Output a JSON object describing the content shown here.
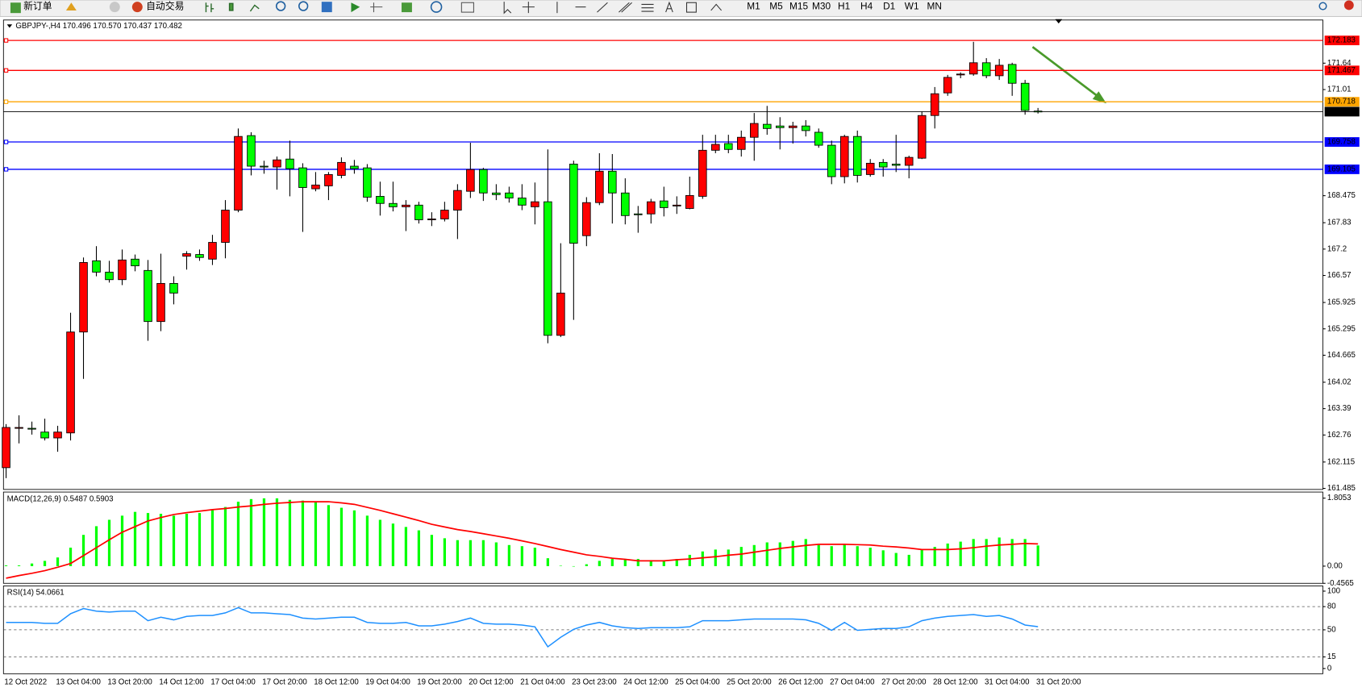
{
  "toolbar": {
    "new_order": "新订单",
    "auto_trading": "自动交易",
    "timeframes": [
      "M1",
      "M5",
      "M15",
      "M30",
      "H1",
      "H4",
      "D1",
      "W1",
      "MN"
    ]
  },
  "chart_data": [
    {
      "type": "candlestick",
      "title": "GBPJPY-,H4 170.496 170.570 170.437 170.482",
      "categories": [
        "12 Oct 2022",
        null,
        null,
        null,
        "13 Oct 04:00",
        null,
        null,
        null,
        "13 Oct 20:00",
        null,
        null,
        null,
        "14 Oct 12:00",
        null,
        null,
        null,
        "17 Oct 04:00",
        null,
        null,
        null,
        "17 Oct 20:00",
        null,
        null,
        null,
        "18 Oct 12:00",
        null,
        null,
        null,
        "19 Oct 04:00",
        null,
        null,
        null,
        "19 Oct 20:00",
        null,
        null,
        null,
        "20 Oct 12:00",
        null,
        null,
        null,
        "21 Oct 04:00",
        null,
        null,
        null,
        "23 Oct 23:00",
        null,
        null,
        null,
        "24 Oct 12:00",
        null,
        null,
        null,
        "25 Oct 04:00",
        null,
        null,
        null,
        "25 Oct 20:00",
        null,
        null,
        null,
        "26 Oct 12:00",
        null,
        null,
        null,
        "27 Oct 04:00",
        null,
        null,
        null,
        "27 Oct 20:00",
        null,
        null,
        null,
        "28 Oct 12:00",
        null,
        null,
        null,
        "31 Oct 04:00",
        null,
        null,
        null,
        "31 Oct 20:00"
      ],
      "open": [
        161.98,
        162.92,
        162.92,
        162.83,
        162.69,
        162.81,
        165.22,
        166.92,
        166.65,
        166.47,
        166.96,
        166.69,
        165.47,
        166.38,
        167.03,
        167.07,
        166.96,
        167.36,
        168.13,
        169.91,
        169.18,
        169.16,
        169.35,
        169.14,
        168.64,
        168.71,
        168.96,
        169.18,
        169.14,
        168.46,
        168.29,
        168.21,
        168.25,
        167.9,
        167.92,
        168.13,
        168.58,
        169.1,
        168.54,
        168.54,
        168.42,
        168.21,
        168.33,
        165.14,
        169.23,
        167.52,
        168.31,
        169.06,
        168.54,
        168.04,
        168.04,
        168.35,
        168.23,
        168.17,
        168.46,
        169.56,
        169.72,
        169.58,
        169.87,
        170.18,
        170.14,
        170.1,
        170.14,
        169.99,
        169.68,
        168.93,
        169.89,
        168.98,
        169.27,
        169.23,
        169.2,
        169.37,
        170.39,
        170.93,
        171.36,
        171.38,
        171.65,
        171.34,
        171.61,
        171.16,
        170.496
      ],
      "high": [
        163.02,
        163.23,
        163.08,
        163.15,
        162.98,
        165.68,
        167.0,
        167.27,
        166.92,
        167.19,
        167.07,
        166.94,
        167.09,
        166.55,
        167.15,
        167.19,
        167.54,
        168.37,
        170.08,
        169.99,
        169.31,
        169.41,
        169.79,
        169.25,
        169.04,
        169.04,
        169.39,
        169.33,
        169.23,
        168.81,
        168.81,
        168.37,
        168.33,
        168.08,
        168.33,
        168.75,
        169.74,
        169.14,
        168.75,
        168.69,
        168.75,
        168.79,
        169.58,
        167.34,
        169.31,
        168.44,
        169.49,
        169.47,
        168.89,
        168.23,
        168.4,
        168.69,
        168.46,
        168.93,
        169.93,
        169.93,
        169.93,
        170.03,
        170.45,
        170.62,
        170.35,
        170.24,
        170.28,
        170.08,
        169.79,
        169.93,
        170.03,
        169.35,
        169.35,
        169.93,
        169.43,
        170.49,
        171.07,
        171.36,
        171.42,
        172.15,
        171.76,
        171.74,
        171.65,
        171.24,
        170.57
      ],
      "low": [
        161.73,
        162.56,
        162.77,
        162.63,
        162.36,
        162.63,
        164.1,
        166.55,
        166.4,
        166.34,
        166.67,
        165.01,
        165.24,
        165.88,
        166.71,
        166.92,
        166.82,
        166.98,
        168.08,
        168.96,
        169.0,
        168.62,
        168.46,
        167.61,
        168.58,
        168.37,
        168.89,
        169.0,
        168.33,
        168.0,
        168.1,
        167.63,
        167.81,
        167.75,
        167.86,
        167.44,
        168.42,
        168.35,
        168.37,
        168.31,
        168.13,
        167.79,
        164.95,
        165.1,
        165.51,
        167.27,
        168.25,
        167.81,
        167.79,
        167.59,
        167.81,
        167.98,
        168.04,
        168.15,
        168.4,
        169.49,
        169.49,
        169.41,
        169.31,
        169.93,
        169.58,
        169.72,
        169.89,
        169.62,
        168.75,
        168.77,
        168.79,
        168.93,
        168.93,
        169.04,
        168.89,
        169.35,
        170.08,
        170.86,
        171.28,
        171.34,
        171.28,
        171.24,
        170.86,
        170.41,
        170.437
      ],
      "close": [
        162.94,
        162.94,
        162.91,
        162.69,
        162.83,
        165.22,
        166.88,
        166.65,
        166.47,
        166.94,
        166.8,
        165.47,
        166.38,
        166.15,
        167.09,
        167.0,
        167.36,
        168.13,
        169.89,
        169.18,
        169.16,
        169.33,
        169.12,
        168.67,
        168.73,
        168.98,
        169.27,
        169.12,
        168.44,
        168.29,
        168.21,
        168.25,
        167.9,
        167.92,
        168.13,
        168.6,
        169.1,
        168.54,
        168.5,
        168.42,
        168.25,
        168.33,
        165.14,
        166.15,
        167.34,
        168.31,
        169.06,
        168.54,
        168.0,
        168.02,
        168.33,
        168.19,
        168.25,
        168.48,
        169.56,
        169.7,
        169.58,
        169.87,
        170.2,
        170.08,
        170.1,
        170.14,
        170.03,
        169.68,
        168.93,
        169.89,
        168.96,
        169.25,
        169.16,
        169.2,
        169.39,
        170.39,
        170.91,
        171.3,
        171.38,
        171.65,
        171.34,
        171.59,
        171.16,
        170.51,
        170.482
      ],
      "up_color": "#ff0000",
      "down_color": "#00ff00",
      "levels": [
        {
          "value": 172.183,
          "color": "#ff0000"
        },
        {
          "value": 171.467,
          "color": "#ff0000"
        },
        {
          "value": 170.718,
          "color": "#ffa500"
        },
        {
          "value": 169.758,
          "color": "#0000ff"
        },
        {
          "value": 169.105,
          "color": "#0000ff"
        }
      ],
      "ylim": [
        161.46,
        172.65
      ],
      "yticks": [
        171.64,
        171.01,
        168.475,
        167.83,
        167.2,
        166.57,
        165.925,
        165.295,
        164.665,
        164.02,
        163.39,
        162.76,
        162.115,
        161.485
      ]
    },
    {
      "type": "macd",
      "title": "MACD(12,26,9) 0.5487 0.5903",
      "histogram": {
        "color": "#00ff00",
        "values": [
          0.02,
          0.02,
          0.07,
          0.14,
          0.23,
          0.49,
          0.83,
          1.06,
          1.23,
          1.34,
          1.44,
          1.41,
          1.39,
          1.34,
          1.39,
          1.41,
          1.5,
          1.57,
          1.71,
          1.78,
          1.8,
          1.8,
          1.76,
          1.74,
          1.69,
          1.62,
          1.55,
          1.48,
          1.34,
          1.23,
          1.13,
          1.04,
          0.95,
          0.83,
          0.74,
          0.69,
          0.69,
          0.69,
          0.63,
          0.56,
          0.53,
          0.49,
          0.21,
          0.01,
          -0.01,
          0.05,
          0.14,
          0.19,
          0.19,
          0.19,
          0.16,
          0.16,
          0.19,
          0.3,
          0.39,
          0.44,
          0.44,
          0.51,
          0.56,
          0.63,
          0.63,
          0.67,
          0.72,
          0.56,
          0.53,
          0.58,
          0.53,
          0.49,
          0.42,
          0.35,
          0.3,
          0.44,
          0.51,
          0.6,
          0.65,
          0.72,
          0.72,
          0.76,
          0.72,
          0.72,
          0.5487
        ]
      },
      "signal": {
        "color": "#ff0000",
        "values": [
          -0.32,
          -0.25,
          -0.19,
          -0.12,
          -0.03,
          0.07,
          0.28,
          0.49,
          0.7,
          0.9,
          1.05,
          1.2,
          1.29,
          1.37,
          1.42,
          1.46,
          1.5,
          1.53,
          1.57,
          1.6,
          1.64,
          1.67,
          1.69,
          1.71,
          1.71,
          1.71,
          1.68,
          1.64,
          1.56,
          1.48,
          1.39,
          1.3,
          1.21,
          1.11,
          1.04,
          0.97,
          0.92,
          0.86,
          0.8,
          0.74,
          0.67,
          0.6,
          0.52,
          0.44,
          0.37,
          0.3,
          0.26,
          0.21,
          0.18,
          0.14,
          0.14,
          0.14,
          0.17,
          0.19,
          0.22,
          0.25,
          0.29,
          0.32,
          0.37,
          0.42,
          0.47,
          0.51,
          0.55,
          0.58,
          0.58,
          0.58,
          0.57,
          0.56,
          0.53,
          0.51,
          0.48,
          0.44,
          0.44,
          0.44,
          0.46,
          0.49,
          0.53,
          0.56,
          0.58,
          0.6,
          0.5903
        ]
      },
      "ylim": [
        -0.4565,
        1.8053
      ],
      "yticks": [
        1.8053,
        {
          "value": 0,
          "label": "0.00"
        },
        -0.4565
      ]
    },
    {
      "type": "line",
      "title": "RSI(14) 54.0661",
      "color": "#1e90ff",
      "values": [
        59.6,
        59.6,
        59.6,
        58.4,
        58.4,
        70.8,
        77.5,
        74.2,
        73.0,
        74.2,
        74.2,
        61.8,
        66.3,
        62.9,
        67.4,
        68.5,
        68.5,
        71.9,
        78.7,
        71.9,
        71.9,
        70.8,
        69.7,
        65.2,
        64.0,
        65.2,
        66.3,
        66.3,
        59.6,
        58.4,
        58.4,
        59.6,
        55.1,
        55.1,
        57.3,
        60.7,
        65.2,
        58.4,
        57.3,
        57.3,
        56.2,
        53.9,
        28.1,
        40.4,
        50.6,
        56.2,
        59.6,
        55.1,
        52.8,
        51.7,
        52.8,
        52.8,
        52.8,
        53.9,
        61.8,
        61.8,
        61.8,
        62.9,
        64.0,
        64.0,
        64.0,
        64.0,
        62.9,
        58.4,
        49.4,
        59.6,
        49.4,
        50.6,
        51.7,
        51.7,
        53.9,
        61.8,
        65.2,
        67.4,
        68.5,
        69.7,
        67.4,
        68.5,
        64.0,
        56.2,
        54.0661
      ],
      "ylim": [
        0,
        100
      ],
      "yticks": [
        100,
        80,
        50,
        15,
        0
      ]
    }
  ]
}
